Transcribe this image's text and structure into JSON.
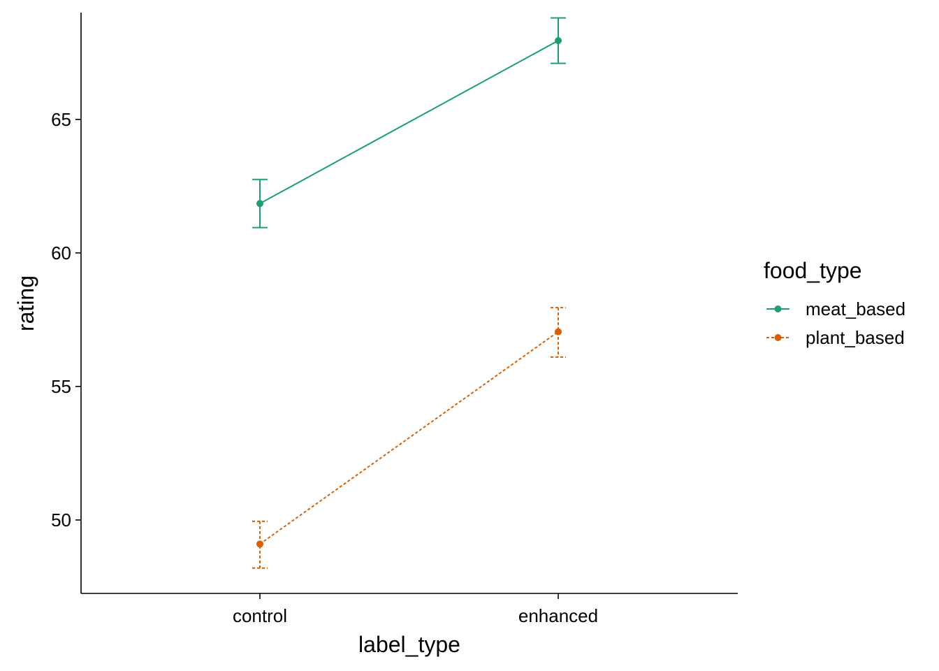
{
  "chart_data": {
    "type": "line",
    "xlabel": "label_type",
    "ylabel": "rating",
    "categories": [
      "control",
      "enhanced"
    ],
    "ylim": [
      47.25,
      69.0
    ],
    "yticks": [
      50,
      55,
      60,
      65
    ],
    "ytick_labels": [
      "50",
      "55",
      "60",
      "65"
    ],
    "grid": false,
    "legend": {
      "title": "food_type",
      "position": "right"
    },
    "series": [
      {
        "name": "meat_based",
        "color": "#1B9E77",
        "line_style": "solid",
        "values": [
          61.85,
          67.95
        ],
        "error_low": [
          60.95,
          67.1
        ],
        "error_high": [
          62.75,
          68.8
        ]
      },
      {
        "name": "plant_based",
        "color": "#D95F02",
        "line_style": "dotted",
        "values": [
          49.1,
          57.05
        ],
        "error_low": [
          48.2,
          56.1
        ],
        "error_high": [
          49.95,
          57.95
        ]
      }
    ]
  }
}
